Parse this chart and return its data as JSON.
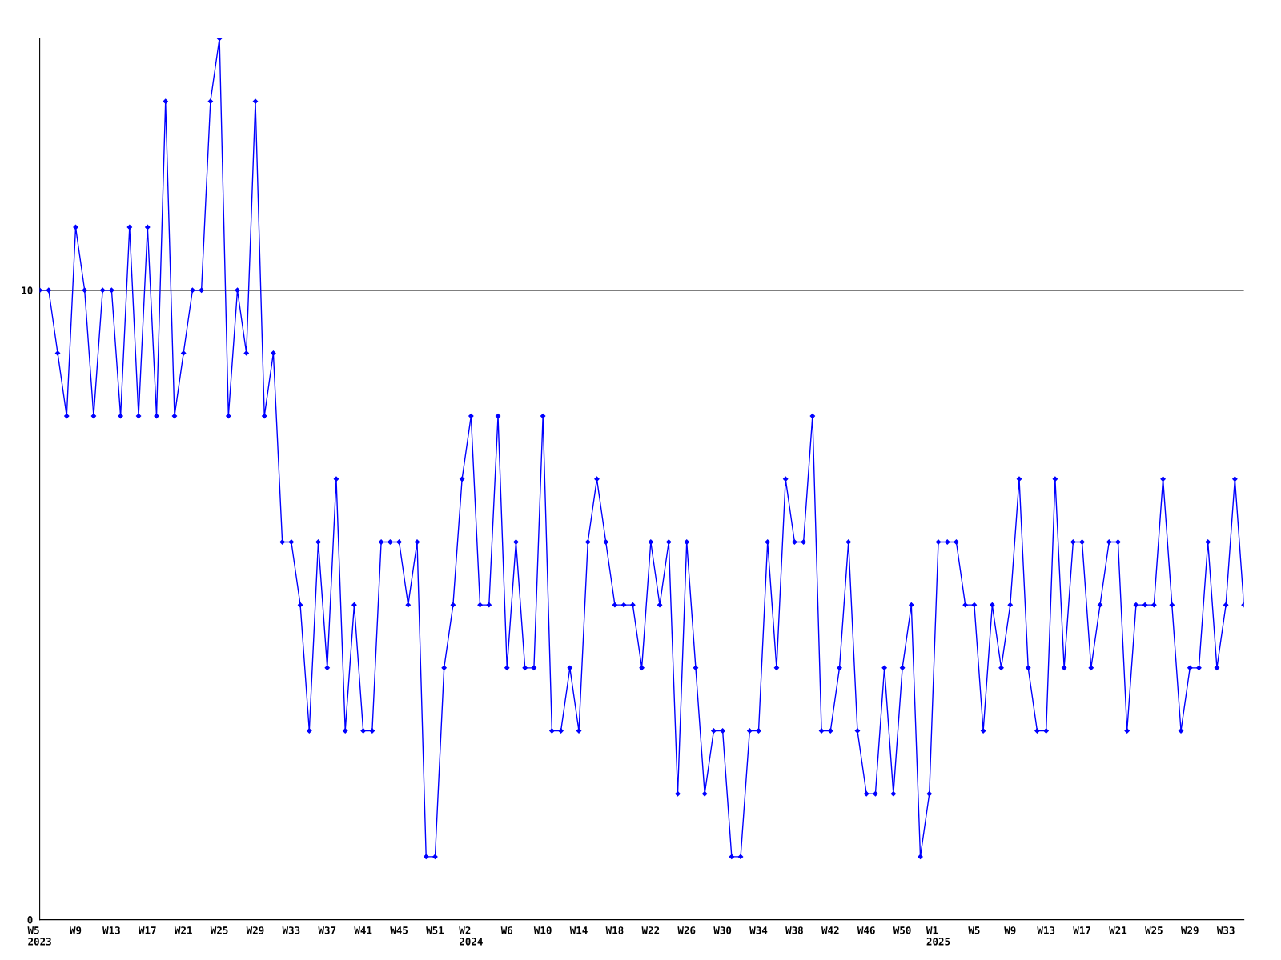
{
  "chart_data": {
    "type": "line",
    "categories": [
      "W5\n2023",
      null,
      null,
      null,
      "W9",
      null,
      null,
      null,
      "W13",
      null,
      null,
      null,
      "W17",
      null,
      null,
      null,
      "W21",
      null,
      null,
      null,
      "W25",
      null,
      null,
      null,
      "W29",
      null,
      null,
      null,
      "W33",
      null,
      null,
      null,
      "W37",
      null,
      null,
      null,
      "W41",
      null,
      null,
      null,
      "W45",
      null,
      null,
      null,
      "W51",
      null,
      null,
      null,
      "W2\n2024",
      null,
      null,
      null,
      "W6",
      null,
      null,
      null,
      "W10",
      null,
      null,
      null,
      "W14",
      null,
      null,
      null,
      "W18",
      null,
      null,
      null,
      "W22",
      null,
      null,
      null,
      "W26",
      null,
      null,
      null,
      "W30",
      null,
      null,
      null,
      "W34",
      null,
      null,
      null,
      "W38",
      null,
      null,
      null,
      "W42",
      null,
      null,
      null,
      "W46",
      null,
      null,
      null,
      "W50",
      null,
      null,
      null,
      "W1\n2025",
      null,
      null,
      null,
      "W5",
      null,
      null,
      null,
      "W9",
      null,
      null,
      null,
      "W13",
      null,
      null,
      null,
      "W17",
      null,
      null,
      null,
      "W21",
      null,
      null,
      null,
      "W25",
      null,
      null,
      null,
      "W29",
      null,
      null,
      null,
      "W33",
      null,
      null
    ],
    "series": [
      {
        "color": "#0000ff",
        "values": [
          10,
          10,
          9,
          8,
          11,
          10,
          8,
          10,
          10,
          8,
          11,
          8,
          11,
          8,
          13,
          8,
          9,
          10,
          10,
          13,
          14,
          8,
          10,
          9,
          13,
          8,
          9,
          6,
          6,
          5,
          3,
          6,
          4,
          7,
          3,
          5,
          3,
          3,
          6,
          6,
          6,
          5,
          6,
          1,
          1,
          4,
          5,
          7,
          8,
          5,
          5,
          8,
          4,
          6,
          4,
          4,
          8,
          3,
          3,
          4,
          3,
          6,
          7,
          6,
          5,
          5,
          5,
          4,
          6,
          5,
          6,
          2,
          6,
          4,
          2,
          3,
          3,
          1,
          1,
          3,
          3,
          6,
          4,
          7,
          6,
          6,
          8,
          3,
          3,
          4,
          6,
          3,
          2,
          2,
          4,
          2,
          4,
          5,
          1,
          2,
          6,
          6,
          6,
          5,
          5,
          3,
          5,
          4,
          5,
          7,
          4,
          3,
          3,
          7,
          4,
          6,
          6,
          4,
          5,
          6,
          6,
          3,
          5,
          5,
          5,
          7,
          5,
          3,
          4,
          4,
          6,
          4,
          5,
          7,
          5
        ]
      }
    ],
    "ylim": [
      0,
      14
    ],
    "yticks": [
      0,
      10
    ],
    "grid": "y",
    "marker": "diamond",
    "line_style": "solid"
  }
}
